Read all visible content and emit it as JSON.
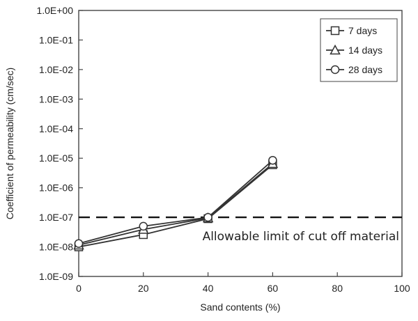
{
  "chart_data": {
    "type": "line",
    "y_scale": "log",
    "xlabel": "Sand contents (%)",
    "ylabel": "Coefficient of permeability (cm/sec)",
    "xlim": [
      0,
      100
    ],
    "ylim": [
      1e-09,
      1
    ],
    "x_ticks": [
      "0",
      "20",
      "40",
      "60",
      "80",
      "100"
    ],
    "y_ticks": [
      "1.0E-09",
      "1.0E-08",
      "1.0E-07",
      "1.0E-06",
      "1.0E-05",
      "1.0E-04",
      "1.0E-03",
      "1.0E-02",
      "1.0E-01",
      "1.0E+00"
    ],
    "legend_position": "top-right",
    "grid": false,
    "x": [
      0,
      20,
      40,
      60
    ],
    "series": [
      {
        "name": "7 days",
        "marker": "square",
        "values": [
          1e-08,
          2.6e-08,
          9e-08,
          6e-06
        ]
      },
      {
        "name": "14 days",
        "marker": "triangle",
        "values": [
          1.15e-08,
          3.9e-08,
          9.5e-08,
          6.6e-06
        ]
      },
      {
        "name": "28 days",
        "marker": "circle",
        "values": [
          1.3e-08,
          5e-08,
          1e-07,
          8.5e-06
        ]
      }
    ],
    "reference_line": {
      "y": 1e-07,
      "style": "dashed",
      "label": "Allowable limit of cut off material"
    },
    "colors": {
      "line": "#333333",
      "axis": "#444444",
      "background": "#ffffff"
    }
  }
}
